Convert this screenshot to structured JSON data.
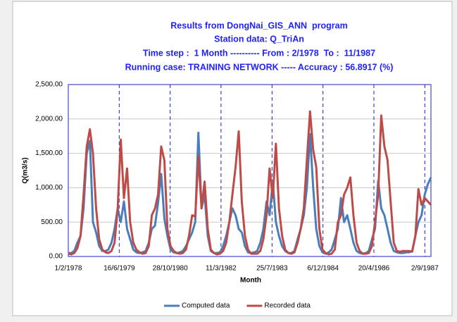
{
  "chart_data": {
    "type": "line",
    "title_lines": [
      "Results from DongNai_GIS_ANN  program",
      "Station data: Q_TriAn",
      "Time step :  1 Month ---------- From : 2/1978  To :  11/1987",
      "Running case: TRAINING NETWORK ----- Accuracy : 56.8917 (%)"
    ],
    "x_label": "Month",
    "y_label": "Q(m3/s)",
    "x": [
      "1978-02-01",
      "1978-03-01",
      "1978-04-01",
      "1978-05-01",
      "1978-06-01",
      "1978-07-01",
      "1978-08-01",
      "1978-09-01",
      "1978-10-01",
      "1978-11-01",
      "1978-12-01",
      "1979-01-01",
      "1979-02-01",
      "1979-03-01",
      "1979-04-01",
      "1979-05-01",
      "1979-06-01",
      "1979-07-01",
      "1979-08-01",
      "1979-09-01",
      "1979-10-01",
      "1979-11-01",
      "1979-12-01",
      "1980-01-01",
      "1980-02-01",
      "1980-03-01",
      "1980-04-01",
      "1980-05-01",
      "1980-06-01",
      "1980-07-01",
      "1980-08-01",
      "1980-09-01",
      "1980-10-01",
      "1980-11-01",
      "1980-12-01",
      "1981-01-01",
      "1981-02-01",
      "1981-03-01",
      "1981-04-01",
      "1981-05-01",
      "1981-06-01",
      "1981-07-01",
      "1981-08-01",
      "1981-09-01",
      "1981-10-01",
      "1981-11-01",
      "1981-12-01",
      "1982-01-01",
      "1982-02-01",
      "1982-03-01",
      "1982-04-01",
      "1982-05-01",
      "1982-06-01",
      "1982-07-01",
      "1982-08-01",
      "1982-09-01",
      "1982-10-01",
      "1982-11-01",
      "1982-12-01",
      "1983-01-01",
      "1983-02-01",
      "1983-03-01",
      "1983-04-01",
      "1983-05-01",
      "1983-06-01",
      "1983-07-01",
      "1983-08-01",
      "1983-09-01",
      "1983-10-01",
      "1983-11-01",
      "1983-12-01",
      "1984-01-01",
      "1984-02-01",
      "1984-03-01",
      "1984-04-01",
      "1984-05-01",
      "1984-06-01",
      "1984-07-01",
      "1984-08-01",
      "1984-09-01",
      "1984-10-01",
      "1984-11-01",
      "1984-12-01",
      "1985-01-01",
      "1985-02-01",
      "1985-03-01",
      "1985-04-01",
      "1985-05-01",
      "1985-06-01",
      "1985-07-01",
      "1985-08-01",
      "1985-09-01",
      "1985-10-01",
      "1985-11-01",
      "1985-12-01",
      "1986-01-01",
      "1986-02-01",
      "1986-03-01",
      "1986-04-01",
      "1986-05-01",
      "1986-06-01",
      "1986-07-01",
      "1986-08-01",
      "1986-09-01",
      "1986-10-01",
      "1986-11-01",
      "1986-12-01",
      "1987-01-01",
      "1987-02-01",
      "1987-03-01",
      "1987-04-01",
      "1987-05-01",
      "1987-06-01",
      "1987-07-01",
      "1987-08-01",
      "1987-09-01",
      "1987-10-01",
      "1987-11-01"
    ],
    "series": [
      {
        "name": "Computed data",
        "color": "#4a7ebb",
        "values": [
          50,
          50,
          80,
          200,
          300,
          700,
          1500,
          1680,
          500,
          350,
          150,
          80,
          80,
          100,
          200,
          400,
          700,
          500,
          800,
          400,
          250,
          100,
          60,
          50,
          60,
          80,
          200,
          400,
          450,
          780,
          1200,
          550,
          300,
          100,
          60,
          50,
          60,
          80,
          150,
          250,
          350,
          500,
          1800,
          700,
          900,
          300,
          80,
          50,
          50,
          60,
          150,
          300,
          500,
          700,
          600,
          400,
          350,
          150,
          60,
          50,
          60,
          80,
          200,
          400,
          800,
          600,
          1100,
          500,
          300,
          150,
          80,
          50,
          50,
          80,
          250,
          400,
          600,
          1000,
          1780,
          1000,
          400,
          150,
          60,
          40,
          60,
          100,
          250,
          400,
          850,
          500,
          600,
          400,
          200,
          80,
          50,
          40,
          50,
          80,
          250,
          400,
          1100,
          700,
          600,
          400,
          200,
          80,
          60,
          50,
          50,
          60,
          60,
          80,
          300,
          500,
          600,
          900,
          1050,
          1150
        ]
      },
      {
        "name": "Recorded data",
        "color": "#be4b48",
        "values": [
          40,
          30,
          50,
          120,
          300,
          900,
          1600,
          1850,
          1500,
          700,
          250,
          100,
          60,
          50,
          80,
          200,
          700,
          1700,
          850,
          1280,
          500,
          200,
          100,
          60,
          40,
          50,
          150,
          600,
          700,
          900,
          1600,
          1400,
          400,
          150,
          80,
          50,
          40,
          50,
          100,
          300,
          600,
          580,
          1450,
          700,
          1090,
          400,
          100,
          50,
          30,
          40,
          80,
          200,
          500,
          900,
          1300,
          1820,
          800,
          300,
          100,
          40,
          40,
          40,
          80,
          250,
          600,
          1280,
          850,
          1640,
          700,
          300,
          100,
          50,
          40,
          60,
          200,
          400,
          700,
          1400,
          2110,
          1550,
          1300,
          400,
          100,
          50,
          30,
          40,
          100,
          500,
          600,
          900,
          1000,
          1150,
          600,
          200,
          80,
          40,
          40,
          50,
          150,
          500,
          900,
          2050,
          1600,
          1400,
          800,
          200,
          80,
          70,
          80,
          80,
          80,
          70,
          300,
          980,
          750,
          850,
          800,
          750
        ]
      }
    ],
    "xlim": [
      "1978-02-01",
      "1987-11-01"
    ],
    "xticks": [
      {
        "value": "1978-02-01",
        "label": "1/2/1978"
      },
      {
        "value": "1979-06-16",
        "label": "16/6/1979"
      },
      {
        "value": "1980-10-28",
        "label": "28/10/1980"
      },
      {
        "value": "1982-03-11",
        "label": "11/3/1982"
      },
      {
        "value": "1983-07-25",
        "label": "25/7/1983"
      },
      {
        "value": "1984-12-06",
        "label": "6/12/1984"
      },
      {
        "value": "1986-04-20",
        "label": "20/4/1986"
      },
      {
        "value": "1987-09-02",
        "label": "2/9/1987"
      }
    ],
    "ylim": [
      0,
      2500
    ],
    "yticks": [
      {
        "value": 0,
        "label": "0.00"
      },
      {
        "value": 500,
        "label": "500.00"
      },
      {
        "value": 1000,
        "label": "1,000.00"
      },
      {
        "value": 1500,
        "label": "1,500.00"
      },
      {
        "value": 2000,
        "label": "2,000.00"
      },
      {
        "value": 2500,
        "label": "2,500.00"
      }
    ],
    "grid": true,
    "legend": "bottom"
  }
}
